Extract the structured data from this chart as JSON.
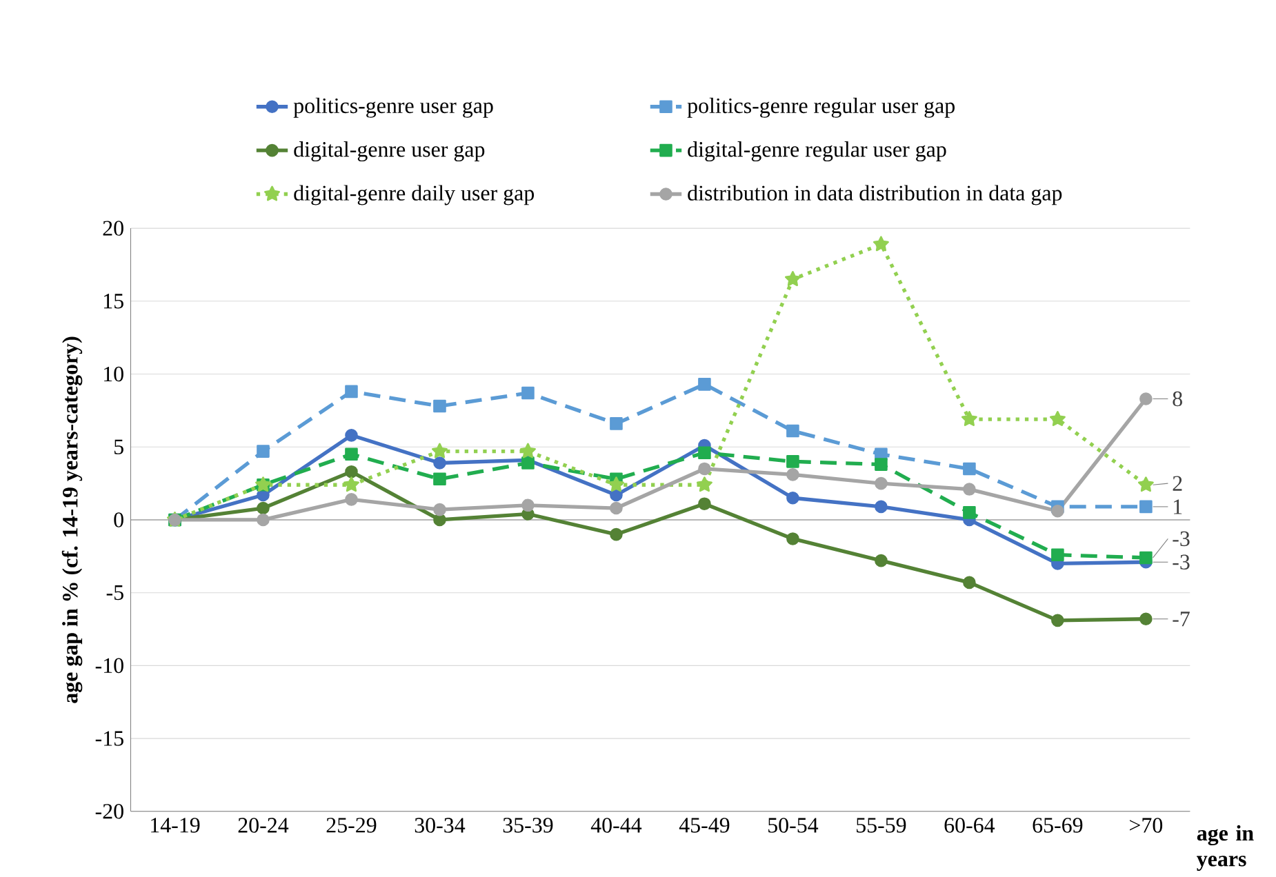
{
  "chart_data": {
    "type": "line",
    "xlabel": "age in years",
    "ylabel": "age gap in % (cf. 14-19 years-category)",
    "categories": [
      "14-19",
      "20-24",
      "25-29",
      "30-34",
      "35-39",
      "40-44",
      "45-49",
      "50-54",
      "55-59",
      "60-64",
      "65-69",
      ">70"
    ],
    "ylim": [
      -20,
      20
    ],
    "yticks": [
      -20,
      -15,
      -10,
      -5,
      0,
      5,
      10,
      15,
      20
    ],
    "grid": "y",
    "legend": "top",
    "series": [
      {
        "name": "politics-genre user gap",
        "color": "#4472c4",
        "marker": "circle",
        "line_style": "solid",
        "values": [
          0,
          1.7,
          5.8,
          3.9,
          4.1,
          1.7,
          5.1,
          1.5,
          0.9,
          0,
          -3.0,
          -2.9
        ],
        "value_labels": [
          null,
          null,
          null,
          null,
          null,
          null,
          null,
          null,
          null,
          null,
          null,
          "-3"
        ]
      },
      {
        "name": "politics-genre regular user gap",
        "color": "#5b9bd5",
        "marker": "square",
        "line_style": "dashed",
        "values": [
          0,
          4.7,
          8.8,
          7.8,
          8.7,
          6.6,
          9.3,
          6.1,
          4.5,
          3.5,
          0.9,
          0.9
        ],
        "value_labels": [
          null,
          null,
          null,
          null,
          null,
          null,
          null,
          null,
          null,
          null,
          null,
          "1"
        ]
      },
      {
        "name": "digital-genre user gap",
        "color": "#548235",
        "marker": "circle",
        "line_style": "solid",
        "values": [
          0,
          0.8,
          3.3,
          0,
          0.4,
          -1.0,
          1.1,
          -1.3,
          -2.8,
          -4.3,
          -6.9,
          -6.8
        ],
        "value_labels": [
          null,
          null,
          null,
          null,
          null,
          null,
          null,
          null,
          null,
          null,
          null,
          "-7"
        ]
      },
      {
        "name": "digital-genre regular user gap",
        "color": "#21ad4f",
        "marker": "square",
        "line_style": "dashed",
        "values": [
          0,
          2.4,
          4.5,
          2.8,
          3.9,
          2.8,
          4.6,
          4.0,
          3.8,
          0.5,
          -2.4,
          -2.6
        ],
        "value_labels": [
          null,
          null,
          null,
          null,
          null,
          null,
          null,
          null,
          null,
          null,
          null,
          "-3"
        ]
      },
      {
        "name": "digital-genre daily user gap",
        "color": "#92d050",
        "marker": "star",
        "line_style": "dotted",
        "values": [
          0,
          2.4,
          2.4,
          4.7,
          4.7,
          2.4,
          2.4,
          16.5,
          18.9,
          6.9,
          6.9,
          2.4
        ],
        "value_labels": [
          null,
          null,
          null,
          null,
          null,
          null,
          null,
          null,
          null,
          null,
          null,
          "2"
        ]
      },
      {
        "name": "distribution in data distribution in data gap",
        "color": "#a5a5a5",
        "marker": "circle",
        "line_style": "solid",
        "values": [
          0,
          0,
          1.4,
          0.7,
          1.0,
          0.8,
          3.5,
          3.1,
          2.5,
          2.1,
          0.6,
          8.3
        ],
        "value_labels": [
          null,
          null,
          null,
          null,
          null,
          null,
          null,
          null,
          null,
          null,
          null,
          "8"
        ]
      }
    ]
  }
}
